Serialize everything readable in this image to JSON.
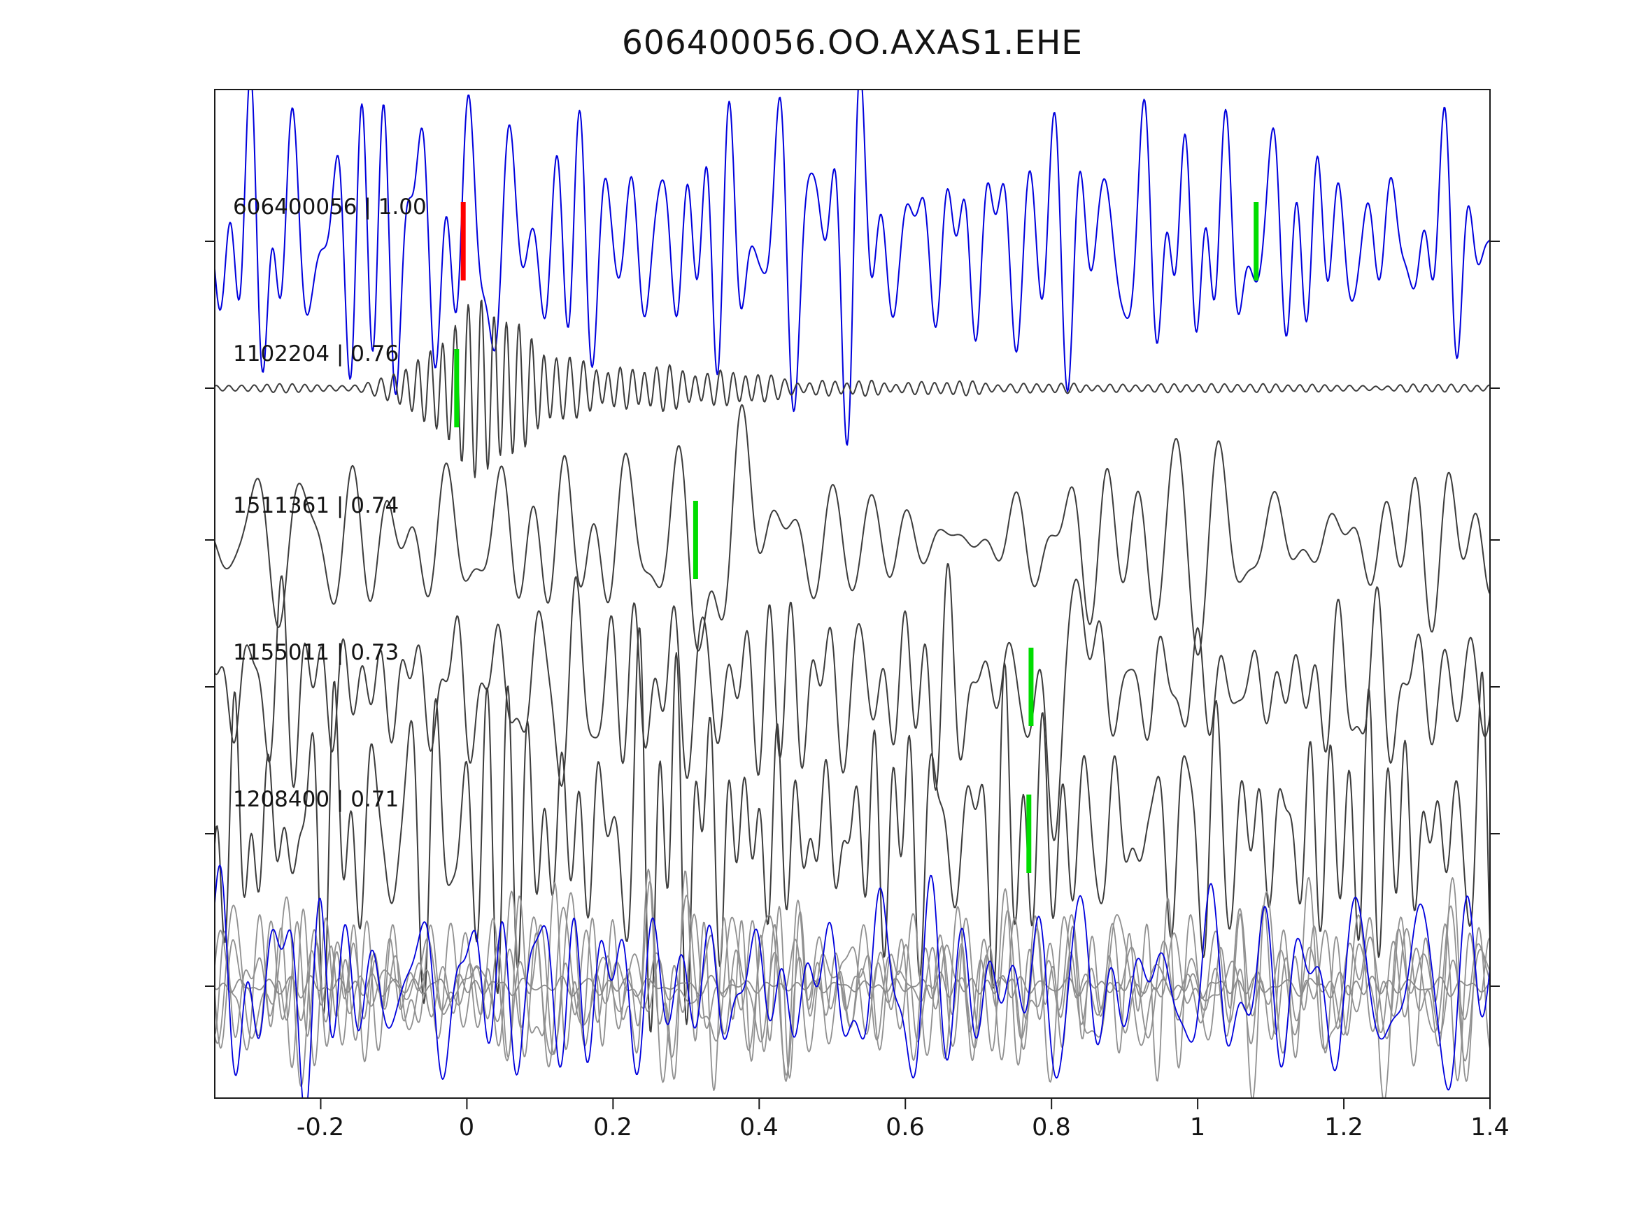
{
  "title": "606400056.OO.AXAS1.EHE",
  "chart_data": {
    "type": "line",
    "title": "606400056.OO.AXAS1.EHE",
    "xlabel": "",
    "ylabel": "",
    "grid": false,
    "x_range": [
      -0.345,
      1.4
    ],
    "x_ticks": [
      -0.2,
      0,
      0.2,
      0.4,
      0.6,
      0.8,
      1,
      1.2,
      1.4
    ],
    "x_tick_labels": [
      "-0.2",
      "0",
      "0.2",
      "0.4",
      "0.6",
      "0.8",
      "1",
      "1.2",
      "1.4"
    ],
    "colors": {
      "template_trace": "#0000dd",
      "detection_trace": "#3c3c3c",
      "overlay_trace": "#909090",
      "pick_green": "#00dd00",
      "pick_red": "#ff0000",
      "axes": "#1a1a1a"
    },
    "traces": [
      {
        "id": "606400056",
        "correlation": "1.00",
        "label": "606400056 | 1.00",
        "color": "#0000dd",
        "row": 0,
        "picks": [
          {
            "x": -0.005,
            "color": "#ff0000"
          },
          {
            "x": 1.08,
            "color": "#00dd00"
          }
        ],
        "synth": {
          "type": "noise",
          "seed": 101,
          "amp": 100,
          "f_lo": 12,
          "f_hi": 40,
          "n": 34
        }
      },
      {
        "id": "1102204",
        "correlation": "0.76",
        "label": "1102204 | 0.76",
        "color": "#3c3c3c",
        "row": 1,
        "picks": [
          {
            "x": -0.014,
            "color": "#00dd00"
          }
        ],
        "synth": {
          "type": "spindle",
          "seed": 202,
          "amp": 112,
          "f0": 58,
          "base": 0.05,
          "x0": 0.02,
          "rise": 0.1,
          "decay": 0.17,
          "mix": 0.2,
          "nf_lo": 40,
          "nf_hi": 70,
          "n": 10
        }
      },
      {
        "id": "1511361",
        "correlation": "0.74",
        "label": "1511361 | 0.74",
        "color": "#3c3c3c",
        "row": 2,
        "picks": [
          {
            "x": 0.313,
            "color": "#00dd00"
          }
        ],
        "synth": {
          "type": "noise",
          "seed": 303,
          "amp": 62,
          "f_lo": 9,
          "f_hi": 26,
          "n": 28,
          "event": {
            "x": 0.36,
            "A": 115,
            "w": 0.07,
            "f": 7
          }
        }
      },
      {
        "id": "1155011",
        "correlation": "0.73",
        "label": "1155011 | 0.73",
        "color": "#3c3c3c",
        "row": 3,
        "picks": [
          {
            "x": 0.772,
            "color": "#00dd00"
          }
        ],
        "synth": {
          "type": "noise",
          "seed": 404,
          "amp": 58,
          "f_lo": 14,
          "f_hi": 38,
          "n": 30,
          "event": {
            "x": 0.82,
            "A": 150,
            "w": 0.055,
            "f": 9
          }
        }
      },
      {
        "id": "1208400",
        "correlation": "0.71",
        "label": "1208400 | 0.71",
        "color": "#3c3c3c",
        "row": 4,
        "picks": [
          {
            "x": 0.769,
            "color": "#00dd00"
          }
        ],
        "synth": {
          "type": "noise",
          "seed": 505,
          "amp": 100,
          "f_lo": 18,
          "f_hi": 46,
          "n": 34
        }
      }
    ],
    "overlay_traces": [
      {
        "color": "#909090",
        "synth": {
          "type": "noise",
          "seed": 61,
          "amp": 58,
          "f_lo": 12,
          "f_hi": 38,
          "n": 26
        }
      },
      {
        "color": "#909090",
        "synth": {
          "type": "noise",
          "seed": 62,
          "amp": 55,
          "f_lo": 12,
          "f_hi": 38,
          "n": 26
        }
      },
      {
        "color": "#909090",
        "synth": {
          "type": "noise",
          "seed": 63,
          "amp": 60,
          "f_lo": 14,
          "f_hi": 40,
          "n": 26
        }
      },
      {
        "color": "#909090",
        "synth": {
          "type": "noise",
          "seed": 64,
          "amp": 52,
          "f_lo": 10,
          "f_hi": 34,
          "n": 26
        }
      },
      {
        "color": "#8a8a8a",
        "synth": {
          "type": "noise",
          "seed": 65,
          "amp": 7,
          "f_lo": 20,
          "f_hi": 50,
          "n": 20
        }
      },
      {
        "color": "#0000dd",
        "synth": {
          "type": "noise",
          "seed": 66,
          "amp": 66,
          "f_lo": 10,
          "f_hi": 32,
          "n": 26
        }
      }
    ]
  }
}
